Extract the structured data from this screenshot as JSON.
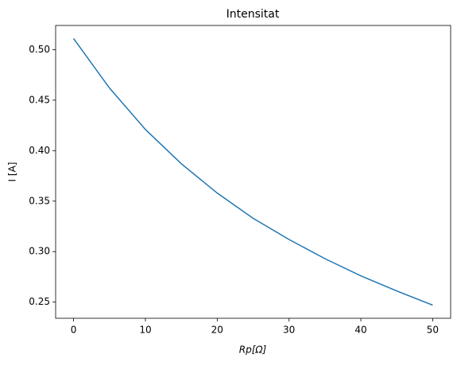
{
  "chart_data": {
    "type": "line",
    "title": "Intensitat",
    "x_label": "Rp[Ω]",
    "y_label": "I [A]",
    "x": [
      0,
      5,
      10,
      15,
      20,
      25,
      30,
      35,
      40,
      45,
      50
    ],
    "series": [
      {
        "color": "#1f77b4",
        "values": [
          0.511,
          0.462,
          0.421,
          0.387,
          0.358,
          0.333,
          0.312,
          0.293,
          0.276,
          0.261,
          0.247
        ]
      }
    ],
    "xlim": [
      -2.5,
      52.5
    ],
    "xticks": [
      0,
      10,
      20,
      30,
      40,
      50
    ],
    "ylim": [
      0.234,
      0.524
    ],
    "yticks": [
      0.25,
      {
        "value": 0.3,
        "label": "0.30"
      },
      0.35,
      {
        "value": 0.4,
        "label": "0.40"
      },
      0.45,
      {
        "value": 0.5,
        "label": "0.50"
      }
    ],
    "grid": false
  }
}
